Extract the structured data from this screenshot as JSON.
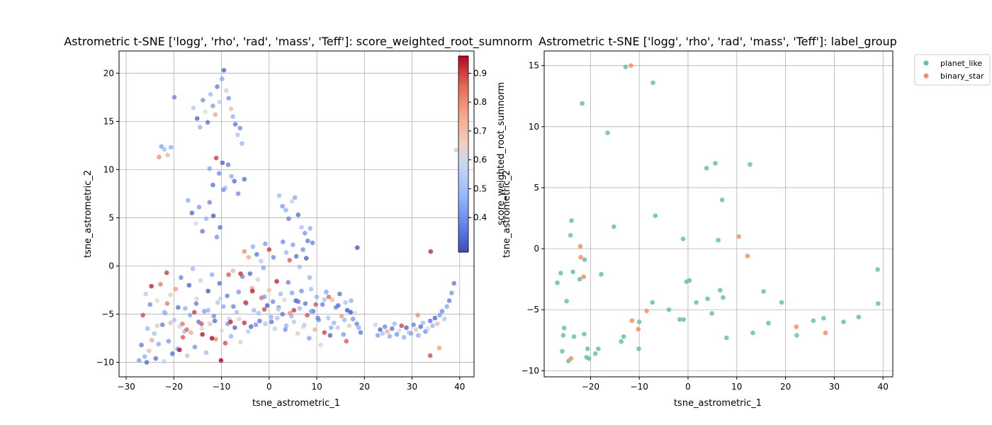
{
  "chart_data": [
    {
      "type": "scatter",
      "title": "Astrometric t-SNE ['logg', 'rho', 'rad', 'mass', 'Teff']: score_weighted_root_sumnorm",
      "xlabel": "tsne_astrometric_1",
      "ylabel": "tsne_astrometric_2",
      "xlim": [
        -31.5,
        43
      ],
      "ylim": [
        -11.5,
        22.3
      ],
      "xticks": [
        -30,
        -20,
        -10,
        0,
        10,
        20,
        30,
        40
      ],
      "yticks": [
        -10,
        -5,
        0,
        5,
        10,
        15,
        20
      ],
      "grid": true,
      "colormap": "coolwarm",
      "colorbar": {
        "label": "score_weighted_root_sumnorm",
        "range": [
          0.28,
          0.96
        ],
        "ticks": [
          0.4,
          0.5,
          0.6,
          0.7,
          0.8,
          0.9
        ],
        "low_color": "#3b4cc0",
        "mid_color": "#dddddd",
        "high_color": "#b40426"
      },
      "series": [
        {
          "x": [
            -27.3,
            -26.8,
            -26.5,
            -26.1,
            -25.9,
            -25.7,
            -25.5,
            -25.2,
            -25.0,
            -24.7,
            -24.1,
            -23.8,
            -23.5,
            -23.2,
            -22.8,
            -22.4,
            -22.1,
            -21.8,
            -21.5,
            -21.1,
            -20.7,
            -20.3,
            -19.9,
            -19.6,
            -19.2,
            -18.8,
            -18.5,
            -18.1,
            -17.6,
            -17.2,
            -16.8,
            -16.4,
            -16.0,
            -15.6,
            -15.2,
            -14.8,
            -14.4,
            -14.0,
            -13.6,
            -13.2,
            -12.8,
            -12.4,
            -12.0,
            -11.6,
            -11.2,
            -10.8,
            -10.4,
            -10.0,
            -9.6,
            -9.2,
            -8.8,
            -8.4,
            -8.0,
            -7.6,
            -7.2,
            -6.8,
            -6.4,
            -6.0,
            -5.6,
            -5.2,
            -4.8,
            -4.4,
            -4.0,
            -3.6,
            -3.2,
            -2.8,
            -2.4,
            -2.0,
            -1.6,
            -1.2,
            -0.8,
            -0.4,
            0.0,
            0.4,
            0.8,
            1.2,
            1.6,
            2.0,
            2.4,
            2.8,
            3.2,
            3.6,
            4.0,
            4.4,
            4.8,
            5.2,
            5.6,
            6.0,
            6.4,
            6.8,
            7.2,
            7.6,
            8.0,
            8.4,
            8.8,
            9.2,
            9.6,
            10.0,
            10.4,
            10.8,
            11.2,
            11.6,
            12.0,
            12.4,
            12.8,
            13.2,
            13.6,
            14.0,
            14.4,
            14.8,
            15.2,
            15.6,
            16.0,
            16.4,
            16.8,
            17.2,
            17.6,
            18.0,
            18.4,
            18.8,
            19.2,
            22.3,
            22.8,
            23.3,
            23.8,
            24.3,
            24.8,
            25.3,
            25.8,
            26.3,
            26.8,
            27.3,
            27.8,
            28.3,
            28.8,
            29.3,
            29.8,
            30.3,
            30.8,
            31.3,
            31.8,
            32.3,
            32.8,
            33.3,
            33.8,
            34.3,
            34.8,
            35.3,
            35.8,
            36.3,
            36.8,
            37.3,
            37.8,
            38.3,
            38.8,
            39.2,
            -23.1,
            -22.6,
            -22.0,
            -21.3,
            -20.6,
            -19.9,
            -15.9,
            -15.1,
            -14.5,
            -13.9,
            -13.4,
            -12.9,
            -12.3,
            -11.8,
            -11.3,
            -10.9,
            -10.4,
            -9.9,
            -9.5,
            -9.0,
            -8.5,
            -8.0,
            -7.6,
            -7.1,
            -6.6,
            -6.1,
            -5.7,
            -5.2,
            -12.5,
            -11.8,
            -11.1,
            -10.5,
            -9.8,
            -9.2,
            -8.6,
            -7.9,
            -7.3,
            -6.5,
            -17.0,
            -16.2,
            -15.4,
            -14.7,
            -14.0,
            -13.2,
            -12.5,
            -11.7,
            -11.0,
            -10.3,
            -9.6,
            2.1,
            2.8,
            3.5,
            4.1,
            4.8,
            5.4,
            6.1,
            6.8,
            7.5,
            8.1,
            8.6,
            2.9,
            3.6,
            4.3,
            5.0,
            5.7,
            6.4,
            7.1,
            7.8,
            8.5,
            9.1,
            -5.2,
            -4.3,
            -3.4,
            -2.6,
            -1.7,
            -0.8,
            0.0,
            0.9,
            1.7,
            -23.5,
            -22.0,
            -20.7,
            -19.1,
            -17.8,
            -16.6,
            -15.3,
            -14.1,
            -12.8,
            -11.4,
            -10.2,
            -8.7,
            -7.5,
            -6.3,
            -5.0,
            -3.8,
            -2.2,
            -1.0,
            0.5,
            1.9,
            3.4,
            4.7,
            6.1,
            7.4,
            8.8,
            10.2,
            11.6,
            13.0,
            14.5,
            15.8,
            17.1,
            18.5,
            33.9,
            33.8,
            -18.8,
            -17.3,
            -15.7,
            -14.2,
            -8.1,
            -4.9,
            -6.0,
            -8.5,
            -3.5,
            -1.0,
            5.2,
            9.8,
            12.5,
            16.2,
            27.8,
            31.2,
            35.7,
            -24.6,
            -21.4,
            -18.2,
            -12.0,
            -10.1
          ],
          "color_values": [
            0.42,
            0.36,
            0.88,
            0.45,
            0.55,
            0.33,
            0.48,
            0.7,
            0.39,
            0.92,
            0.51,
            0.35,
            0.62,
            0.44,
            0.82,
            0.37,
            0.58,
            0.47,
            0.9,
            0.41,
            0.66,
            0.34,
            0.52,
            0.78,
            0.43,
            0.6,
            0.38,
            0.86,
            0.46,
            0.54,
            0.32,
            0.74,
            0.49,
            0.4,
            0.64,
            0.36,
            0.57,
            0.94,
            0.42,
            0.5,
            0.31,
            0.68,
            0.45,
            0.39,
            0.8,
            0.53,
            0.35,
            0.61,
            0.44,
            0.88,
            0.37,
            0.56,
            0.47,
            0.72,
            0.33,
            0.5,
            0.41,
            0.65,
            0.38,
            0.91,
            0.45,
            0.55,
            0.34,
            0.76,
            0.48,
            0.4,
            0.59,
            0.36,
            0.84,
            0.43,
            0.52,
            0.31,
            0.69,
            0.46,
            0.39,
            0.57,
            0.93,
            0.42,
            0.5,
            0.35,
            0.63,
            0.47,
            0.38,
            0.81,
            0.44,
            0.54,
            0.32,
            0.67,
            0.49,
            0.4,
            0.58,
            0.36,
            0.87,
            0.43,
            0.51,
            0.34,
            0.73,
            0.46,
            0.41,
            0.6,
            0.37,
            0.89,
            0.44,
            0.53,
            0.33,
            0.7,
            0.48,
            0.39,
            0.56,
            0.35,
            0.79,
            0.42,
            0.52,
            0.31,
            0.66,
            0.47,
            0.4,
            0.61,
            0.38,
            0.45,
            0.36,
            0.58,
            0.42,
            0.33,
            0.51,
            0.39,
            0.74,
            0.44,
            0.35,
            0.49,
            0.41,
            0.63,
            0.37,
            0.46,
            0.32,
            0.55,
            0.43,
            0.38,
            0.68,
            0.45,
            0.34,
            0.5,
            0.4,
            0.59,
            0.36,
            0.47,
            0.33,
            0.71,
            0.42,
            0.39,
            0.53,
            0.44,
            0.37,
            0.41,
            0.36,
            0.57,
            0.8,
            0.44,
            0.5,
            0.71,
            0.45,
            0.38,
            0.55,
            0.33,
            0.47,
            0.4,
            0.62,
            0.35,
            0.5,
            0.42,
            0.76,
            0.37,
            0.56,
            0.44,
            0.32,
            0.58,
            0.41,
            0.69,
            0.46,
            0.36,
            0.52,
            0.39,
            0.48,
            0.34,
            0.43,
            0.35,
            0.9,
            0.4,
            0.32,
            0.51,
            0.37,
            0.45,
            0.34,
            0.39,
            0.44,
            0.33,
            0.6,
            0.42,
            0.36,
            0.48,
            0.38,
            0.31,
            0.41,
            0.35,
            0.4,
            0.5,
            0.42,
            0.46,
            0.37,
            0.58,
            0.44,
            0.34,
            0.52,
            0.41,
            0.36,
            0.45,
            0.39,
            0.48,
            0.86,
            0.43,
            0.35,
            0.5,
            0.4,
            0.31,
            0.47,
            0.38,
            0.8,
            0.74,
            0.45,
            0.36,
            0.55,
            0.42,
            0.9,
            0.39,
            0.53,
            0.66,
            0.48,
            0.7,
            0.35,
            0.52,
            0.43,
            0.37,
            0.6,
            0.46,
            0.34,
            0.57,
            0.41,
            0.38,
            0.64,
            0.44,
            0.33,
            0.5,
            0.42,
            0.36,
            0.55,
            0.4,
            0.47,
            0.35,
            0.58,
            0.43,
            0.37,
            0.51,
            0.45,
            0.34,
            0.48,
            0.3,
            0.3,
            0.92,
            0.88,
            0.95,
            0.85,
            0.9,
            0.87,
            0.93,
            0.89,
            0.91,
            0.86,
            0.94,
            0.88,
            0.9,
            0.87,
            0.84,
            0.86,
            0.85,
            0.8,
            0.78,
            0.75,
            0.82,
            0.83
          ]
        }
      ]
    },
    {
      "type": "scatter",
      "title": "Astrometric t-SNE ['logg', 'rho', 'rad', 'mass', 'Teff']: label_group",
      "xlabel": "tsne_astrometric_1",
      "ylabel": "tsne_astrometric_2",
      "xlim": [
        -29.5,
        42
      ],
      "ylim": [
        -10.5,
        16.2
      ],
      "xticks": [
        -20,
        -10,
        0,
        10,
        20,
        30,
        40
      ],
      "yticks": [
        -10,
        -5,
        0,
        5,
        10,
        15
      ],
      "grid": true,
      "legend": "outside-top-right",
      "series": [
        {
          "name": "planet_like",
          "color": "#66c2a5",
          "x": [
            -12.8,
            -7.2,
            -21.7,
            -16.5,
            5.6,
            3.8,
            7.0,
            -6.7,
            -15.2,
            6.2,
            -1.0,
            -23.9,
            -21.2,
            -24.1,
            -26.1,
            -26.8,
            -23.6,
            -17.8,
            -0.3,
            0.3,
            -22.2,
            -24.9,
            -7.3,
            -3.9,
            1.7,
            4.0,
            6.6,
            7.2,
            4.9,
            -1.7,
            -0.9,
            -10.0,
            -13.2,
            -13.7,
            -18.4,
            -19.0,
            -20.6,
            -20.3,
            -20.8,
            -10.1,
            -21.3,
            -23.4,
            -25.4,
            -25.6,
            -25.8,
            -24.5,
            7.9,
            13.3,
            15.5,
            16.5,
            19.2,
            22.3,
            25.7,
            27.8,
            31.9,
            35.0,
            38.9,
            39.0,
            12.7
          ],
          "y": [
            14.9,
            13.6,
            11.9,
            9.5,
            7.0,
            6.6,
            4.0,
            2.7,
            1.8,
            0.7,
            0.8,
            2.3,
            -0.9,
            1.1,
            -2.0,
            -2.8,
            -1.9,
            -2.1,
            -2.7,
            -2.6,
            -2.5,
            -4.3,
            -4.4,
            -5.0,
            -4.4,
            -4.1,
            -3.4,
            -4.0,
            -5.3,
            -5.8,
            -5.8,
            -6.0,
            -7.2,
            -7.6,
            -8.2,
            -8.6,
            -8.2,
            -9.0,
            -8.9,
            -8.2,
            -7.0,
            -7.2,
            -6.5,
            -7.1,
            -8.4,
            -9.2,
            -7.3,
            -6.9,
            -3.5,
            -6.1,
            -4.4,
            -7.1,
            -5.9,
            -5.7,
            -6.0,
            -5.6,
            -1.7,
            -4.5,
            6.9
          ]
        },
        {
          "name": "binary_star",
          "color": "#fc8d62",
          "x": [
            -11.7,
            -22.1,
            -22.0,
            -21.4,
            10.4,
            12.2,
            -11.5,
            -8.5,
            -10.2,
            -24.0,
            22.2,
            28.2
          ],
          "y": [
            15.0,
            0.2,
            -0.7,
            -2.3,
            1.0,
            -0.6,
            -5.9,
            -5.1,
            -6.6,
            -9.0,
            -6.4,
            -6.9
          ]
        }
      ]
    }
  ]
}
